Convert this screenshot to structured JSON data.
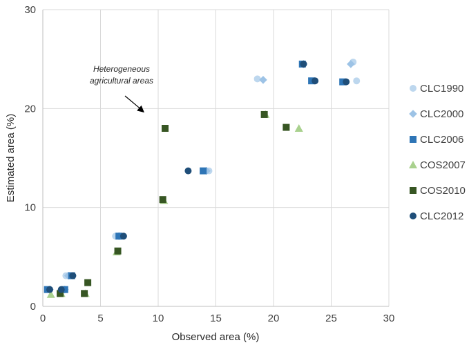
{
  "chart_data": {
    "type": "scatter",
    "title": "",
    "xlabel": "Observed area (%)",
    "ylabel": "Estimated area (%)",
    "xlim": [
      0,
      30
    ],
    "ylim": [
      0,
      30
    ],
    "x_ticks": [
      0,
      5,
      10,
      15,
      20,
      25,
      30
    ],
    "y_ticks": [
      0,
      10,
      20,
      30
    ],
    "grid": true,
    "legend_position": "right",
    "annotation": {
      "lines": [
        "Heterogeneous",
        "agricultural areas"
      ],
      "points_to": {
        "x": 8.8,
        "y": 19.6
      }
    },
    "series": [
      {
        "name": "CLC1990",
        "marker": "circle",
        "color": "#bdd7ee",
        "points": [
          [
            0.5,
            1.7
          ],
          [
            2.0,
            3.1
          ],
          [
            1.8,
            1.7
          ],
          [
            6.3,
            7.1
          ],
          [
            14.4,
            13.7
          ],
          [
            18.6,
            23.0
          ],
          [
            22.6,
            24.5
          ],
          [
            26.9,
            24.7
          ],
          [
            27.2,
            22.8
          ]
        ]
      },
      {
        "name": "CLC2000",
        "marker": "diamond",
        "color": "#9dc3e6",
        "points": [
          [
            0.6,
            1.7
          ],
          [
            2.2,
            3.1
          ],
          [
            1.9,
            1.7
          ],
          [
            6.6,
            7.1
          ],
          [
            14.2,
            13.7
          ],
          [
            19.1,
            22.9
          ],
          [
            22.6,
            24.5
          ],
          [
            26.7,
            24.5
          ]
        ]
      },
      {
        "name": "CLC2006",
        "marker": "square",
        "color": "#2e75b6",
        "points": [
          [
            0.4,
            1.7
          ],
          [
            2.5,
            3.1
          ],
          [
            1.9,
            1.7
          ],
          [
            6.6,
            7.1
          ],
          [
            13.9,
            13.7
          ],
          [
            22.5,
            24.5
          ],
          [
            23.3,
            22.8
          ],
          [
            26.0,
            22.7
          ]
        ]
      },
      {
        "name": "COS2007",
        "marker": "triangle",
        "color": "#a9d18e",
        "points": [
          [
            0.7,
            1.2
          ],
          [
            1.6,
            1.3
          ],
          [
            3.7,
            1.3
          ],
          [
            6.4,
            5.5
          ],
          [
            10.5,
            10.7
          ],
          [
            19.3,
            19.4
          ],
          [
            22.2,
            18.0
          ]
        ]
      },
      {
        "name": "COS2010",
        "marker": "square",
        "color": "#375623",
        "points": [
          [
            1.5,
            1.3
          ],
          [
            3.6,
            1.3
          ],
          [
            3.9,
            2.4
          ],
          [
            6.5,
            5.6
          ],
          [
            10.4,
            10.8
          ],
          [
            10.6,
            18.0
          ],
          [
            19.2,
            19.4
          ],
          [
            21.1,
            18.1
          ]
        ]
      },
      {
        "name": "CLC2012",
        "marker": "circle",
        "color": "#1f4e79",
        "points": [
          [
            0.6,
            1.7
          ],
          [
            1.6,
            1.7
          ],
          [
            2.6,
            3.1
          ],
          [
            7.0,
            7.1
          ],
          [
            12.6,
            13.7
          ],
          [
            22.6,
            24.5
          ],
          [
            23.6,
            22.8
          ],
          [
            26.3,
            22.7
          ]
        ]
      }
    ]
  }
}
